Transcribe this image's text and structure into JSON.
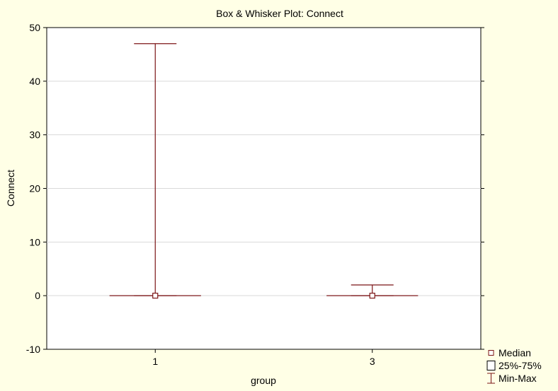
{
  "chart_data": {
    "type": "box",
    "title": "Box & Whisker Plot:  Connect",
    "xlabel": "group",
    "ylabel": "Connect",
    "categories": [
      "1",
      "3"
    ],
    "ylim": [
      -10,
      50
    ],
    "yticks": [
      -10,
      0,
      10,
      20,
      30,
      40,
      50
    ],
    "grid": true,
    "series": [
      {
        "category": "1",
        "median": 0,
        "q1": 0,
        "q3": 0,
        "min": 0,
        "max": 47
      },
      {
        "category": "3",
        "median": 0,
        "q1": 0,
        "q3": 0,
        "min": 0,
        "max": 2
      }
    ],
    "legend": {
      "placement": "bottom-right",
      "items": [
        {
          "label": "Median",
          "marker": "small-square"
        },
        {
          "label": "25%-75%",
          "marker": "box"
        },
        {
          "label": "Min-Max",
          "marker": "whisker"
        }
      ]
    },
    "colors": {
      "background": "#ffffe6",
      "plot_area": "#ffffff",
      "series": "#7b1416",
      "grid": "#d9d9d9",
      "axis": "#000000"
    }
  }
}
